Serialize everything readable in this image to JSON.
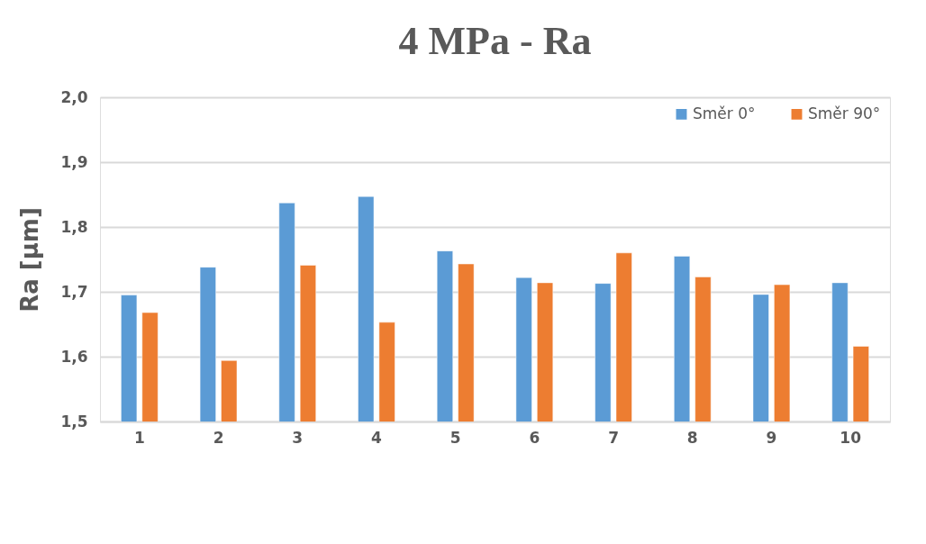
{
  "chart_data": {
    "type": "bar",
    "title": "4 MPa - Ra",
    "ylabel": "Ra [µm]",
    "categories": [
      "1",
      "2",
      "3",
      "4",
      "5",
      "6",
      "7",
      "8",
      "9",
      "10"
    ],
    "series": [
      {
        "name": "Směr  0°",
        "color": "#5b9bd5",
        "values": [
          1.695,
          1.738,
          1.837,
          1.847,
          1.763,
          1.722,
          1.713,
          1.755,
          1.696,
          1.714
        ]
      },
      {
        "name": "Směr 90°",
        "color": "#ed7d31",
        "values": [
          1.668,
          1.594,
          1.741,
          1.653,
          1.743,
          1.714,
          1.76,
          1.723,
          1.711,
          1.616
        ]
      }
    ],
    "ylim": [
      1.5,
      2.0
    ],
    "yticks": [
      {
        "value": 1.5,
        "label": "1,5"
      },
      {
        "value": 1.6,
        "label": "1,6"
      },
      {
        "value": 1.7,
        "label": "1,7"
      },
      {
        "value": 1.8,
        "label": "1,8"
      },
      {
        "value": 1.9,
        "label": "1,9"
      },
      {
        "value": 2.0,
        "label": "2,0"
      }
    ],
    "grid": "y",
    "legend": "top right"
  }
}
